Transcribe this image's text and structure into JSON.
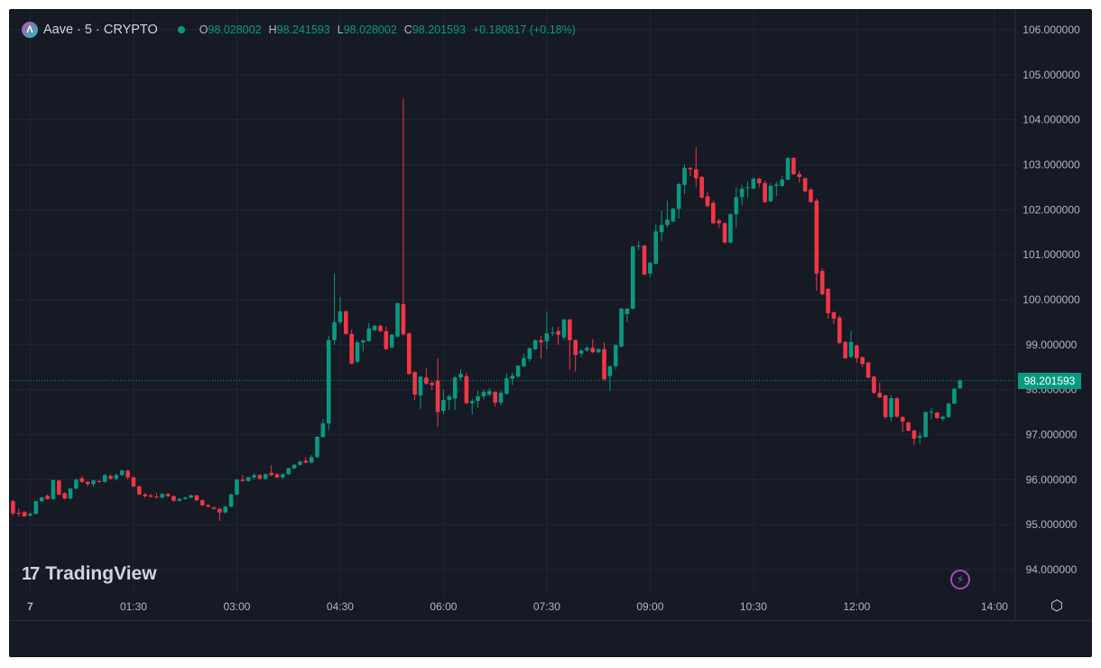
{
  "header": {
    "symbol": "Aave · 5 · CRYPTO",
    "ohlc": [
      {
        "label": "O",
        "value": "98.028002"
      },
      {
        "label": "H",
        "value": "98.241593"
      },
      {
        "label": "L",
        "value": "98.028002"
      },
      {
        "label": "C",
        "value": "98.201593"
      }
    ],
    "change": "+0.180817 (+0.18%)"
  },
  "branding": {
    "logo_text": "TradingView"
  },
  "icons": {
    "symbol_logo": "aave-logo-icon",
    "status": "market-status-dot-icon",
    "bolt": "lightning-icon",
    "settings": "settings-hexagon-icon"
  },
  "colors": {
    "background": "#161a25",
    "up": "#089981",
    "down": "#f23645",
    "grid": "#232632",
    "text": "#b2b5be"
  },
  "current_price_label": "98.201593",
  "chart_data": {
    "type": "candlestick",
    "interval_minutes": 5,
    "title": "",
    "ylim": [
      93.5,
      106.3
    ],
    "grid": true,
    "y_ticks": [
      "106.000000",
      "105.000000",
      "104.000000",
      "103.000000",
      "102.000000",
      "101.000000",
      "100.000000",
      "99.000000",
      "98.000000",
      "97.000000",
      "96.000000",
      "95.000000",
      "94.000000"
    ],
    "y_tick_values": [
      106,
      105,
      104,
      103,
      102,
      101,
      100,
      99,
      98,
      97,
      96,
      95,
      94
    ],
    "x_ticks": [
      "7",
      "01:30",
      "03:00",
      "04:30",
      "06:00",
      "07:30",
      "09:00",
      "10:30",
      "12:00",
      "14:00"
    ],
    "x_tick_minutes": [
      0,
      90,
      180,
      270,
      360,
      450,
      540,
      630,
      720,
      840
    ],
    "first_candle_time": "23:45",
    "last_candle_time": "13:30",
    "candles_ohlc": [
      [
        95.52,
        95.55,
        95.2,
        95.25
      ],
      [
        95.26,
        95.36,
        95.18,
        95.25
      ],
      [
        95.28,
        95.3,
        95.18,
        95.18
      ],
      [
        95.2,
        95.27,
        95.18,
        95.24
      ],
      [
        95.24,
        95.52,
        95.22,
        95.52
      ],
      [
        95.52,
        95.62,
        95.5,
        95.6
      ],
      [
        95.64,
        95.67,
        95.55,
        95.57
      ],
      [
        95.57,
        96.0,
        95.55,
        95.99
      ],
      [
        95.98,
        96.0,
        95.65,
        95.67
      ],
      [
        95.7,
        95.72,
        95.56,
        95.58
      ],
      [
        95.58,
        95.82,
        95.56,
        95.8
      ],
      [
        95.8,
        96.02,
        95.78,
        96.0
      ],
      [
        96.03,
        96.08,
        95.93,
        95.95
      ],
      [
        95.95,
        95.97,
        95.85,
        95.9
      ],
      [
        95.9,
        96.0,
        95.84,
        95.98
      ],
      [
        95.97,
        95.99,
        95.93,
        95.95
      ],
      [
        95.95,
        96.12,
        95.93,
        96.1
      ],
      [
        96.08,
        96.12,
        96.0,
        96.02
      ],
      [
        96.02,
        96.14,
        95.98,
        96.1
      ],
      [
        96.1,
        96.22,
        96.08,
        96.2
      ],
      [
        96.2,
        96.22,
        96.0,
        96.05
      ],
      [
        96.05,
        96.07,
        95.83,
        95.85
      ],
      [
        95.85,
        95.87,
        95.65,
        95.67
      ],
      [
        95.67,
        95.7,
        95.6,
        95.63
      ],
      [
        95.65,
        95.68,
        95.6,
        95.62
      ],
      [
        95.62,
        95.7,
        95.58,
        95.6
      ],
      [
        95.6,
        95.7,
        95.58,
        95.68
      ],
      [
        95.68,
        95.7,
        95.61,
        95.63
      ],
      [
        95.63,
        95.65,
        95.51,
        95.53
      ],
      [
        95.53,
        95.59,
        95.51,
        95.57
      ],
      [
        95.57,
        95.62,
        95.55,
        95.6
      ],
      [
        95.6,
        95.67,
        95.58,
        95.65
      ],
      [
        95.65,
        95.67,
        95.52,
        95.54
      ],
      [
        95.54,
        95.56,
        95.41,
        95.43
      ],
      [
        95.43,
        95.45,
        95.38,
        95.4
      ],
      [
        95.38,
        95.4,
        95.33,
        95.35
      ],
      [
        95.35,
        95.37,
        95.08,
        95.27
      ],
      [
        95.27,
        95.42,
        95.25,
        95.4
      ],
      [
        95.4,
        95.69,
        95.38,
        95.67
      ],
      [
        95.67,
        96.02,
        95.65,
        96.0
      ],
      [
        96.0,
        96.1,
        95.95,
        95.97
      ],
      [
        95.97,
        96.07,
        95.95,
        96.05
      ],
      [
        96.05,
        96.15,
        96.0,
        96.1
      ],
      [
        96.1,
        96.12,
        96.0,
        96.02
      ],
      [
        96.02,
        96.14,
        96.0,
        96.12
      ],
      [
        96.15,
        96.32,
        96.08,
        96.1
      ],
      [
        96.12,
        96.14,
        96.03,
        96.05
      ],
      [
        96.05,
        96.14,
        96.0,
        96.12
      ],
      [
        96.12,
        96.27,
        96.1,
        96.25
      ],
      [
        96.25,
        96.35,
        96.23,
        96.33
      ],
      [
        96.33,
        96.42,
        96.31,
        96.4
      ],
      [
        96.42,
        96.5,
        96.36,
        96.38
      ],
      [
        96.38,
        96.55,
        96.36,
        96.5
      ],
      [
        96.5,
        96.97,
        96.48,
        96.95
      ],
      [
        96.95,
        97.35,
        96.93,
        97.25
      ],
      [
        97.25,
        99.2,
        97.1,
        99.1
      ],
      [
        99.1,
        100.58,
        99.0,
        99.5
      ],
      [
        99.5,
        100.06,
        99.45,
        99.74
      ],
      [
        99.74,
        99.76,
        99.22,
        99.24
      ],
      [
        99.24,
        99.33,
        98.56,
        98.58
      ],
      [
        98.62,
        99.1,
        98.6,
        99.05
      ],
      [
        99.05,
        99.1,
        98.85,
        99.1
      ],
      [
        99.08,
        99.48,
        99.06,
        99.36
      ],
      [
        99.32,
        99.44,
        99.3,
        99.42
      ],
      [
        99.42,
        99.44,
        99.28,
        99.3
      ],
      [
        99.3,
        99.4,
        98.88,
        98.9
      ],
      [
        98.94,
        99.24,
        98.92,
        99.22
      ],
      [
        99.18,
        99.94,
        99.16,
        99.92
      ],
      [
        99.9,
        104.47,
        99.2,
        99.23
      ],
      [
        99.25,
        99.27,
        98.33,
        98.35
      ],
      [
        98.39,
        98.41,
        97.77,
        97.89
      ],
      [
        97.87,
        98.3,
        97.57,
        98.29
      ],
      [
        98.27,
        98.47,
        98.11,
        98.13
      ],
      [
        98.15,
        98.18,
        98.0,
        98.1
      ],
      [
        98.2,
        98.7,
        97.17,
        97.5
      ],
      [
        97.53,
        98.0,
        97.45,
        97.77
      ],
      [
        97.77,
        97.9,
        97.55,
        97.85
      ],
      [
        97.8,
        98.3,
        97.55,
        98.27
      ],
      [
        98.27,
        98.45,
        98.2,
        98.35
      ],
      [
        98.3,
        98.38,
        97.68,
        97.7
      ],
      [
        97.7,
        97.8,
        97.45,
        97.75
      ],
      [
        97.75,
        97.98,
        97.6,
        97.85
      ],
      [
        97.85,
        98.0,
        97.78,
        97.95
      ],
      [
        97.89,
        98.03,
        97.85,
        97.97
      ],
      [
        97.95,
        97.97,
        97.62,
        97.71
      ],
      [
        97.71,
        97.97,
        97.65,
        97.93
      ],
      [
        97.91,
        98.37,
        97.89,
        98.25
      ],
      [
        98.24,
        98.38,
        98.1,
        98.31
      ],
      [
        98.29,
        98.55,
        98.27,
        98.53
      ],
      [
        98.52,
        98.8,
        98.5,
        98.7
      ],
      [
        98.68,
        98.94,
        98.62,
        98.92
      ],
      [
        98.9,
        99.12,
        98.88,
        99.1
      ],
      [
        99.1,
        99.2,
        98.68,
        99.05
      ],
      [
        99.07,
        99.74,
        98.9,
        99.25
      ],
      [
        99.25,
        99.4,
        99.2,
        99.27
      ],
      [
        99.3,
        99.4,
        99.0,
        99.22
      ],
      [
        99.16,
        99.58,
        99.1,
        99.56
      ],
      [
        99.56,
        99.58,
        98.45,
        99.1
      ],
      [
        99.1,
        99.12,
        98.4,
        98.77
      ],
      [
        98.8,
        98.9,
        98.72,
        98.87
      ],
      [
        98.87,
        98.97,
        98.84,
        98.93
      ],
      [
        98.93,
        99.12,
        98.81,
        98.83
      ],
      [
        98.83,
        98.92,
        98.8,
        98.9
      ],
      [
        98.9,
        99.05,
        98.2,
        98.23
      ],
      [
        98.3,
        98.54,
        97.97,
        98.52
      ],
      [
        98.52,
        99.01,
        98.45,
        98.99
      ],
      [
        98.96,
        99.82,
        98.94,
        99.8
      ],
      [
        99.68,
        99.82,
        99.5,
        99.8
      ],
      [
        99.8,
        101.2,
        99.78,
        101.18
      ],
      [
        101.18,
        101.3,
        101.1,
        101.2
      ],
      [
        101.2,
        101.22,
        100.54,
        100.56
      ],
      [
        100.58,
        100.84,
        100.5,
        100.82
      ],
      [
        100.8,
        101.67,
        100.78,
        101.52
      ],
      [
        101.5,
        101.98,
        101.3,
        101.66
      ],
      [
        101.66,
        102.2,
        101.6,
        101.78
      ],
      [
        101.74,
        102.05,
        101.72,
        102.02
      ],
      [
        102.02,
        102.6,
        101.8,
        102.57
      ],
      [
        102.55,
        103.0,
        102.35,
        102.93
      ],
      [
        102.93,
        102.95,
        102.75,
        102.9
      ],
      [
        102.9,
        103.39,
        102.5,
        102.7
      ],
      [
        102.73,
        102.75,
        102.25,
        102.27
      ],
      [
        102.3,
        102.4,
        102.05,
        102.08
      ],
      [
        102.15,
        102.2,
        101.68,
        101.7
      ],
      [
        101.76,
        101.8,
        101.6,
        101.7
      ],
      [
        101.7,
        101.72,
        101.25,
        101.27
      ],
      [
        101.27,
        101.92,
        101.25,
        101.9
      ],
      [
        101.9,
        102.5,
        101.6,
        102.28
      ],
      [
        102.28,
        102.55,
        102.1,
        102.47
      ],
      [
        102.48,
        102.62,
        102.27,
        102.5
      ],
      [
        102.47,
        102.72,
        102.45,
        102.69
      ],
      [
        102.69,
        102.71,
        102.5,
        102.59
      ],
      [
        102.59,
        102.65,
        102.15,
        102.17
      ],
      [
        102.19,
        102.6,
        102.17,
        102.53
      ],
      [
        102.53,
        102.62,
        102.3,
        102.56
      ],
      [
        102.53,
        102.75,
        102.51,
        102.67
      ],
      [
        102.67,
        103.17,
        102.65,
        103.15
      ],
      [
        103.15,
        103.17,
        102.77,
        102.79
      ],
      [
        102.79,
        102.86,
        102.6,
        102.73
      ],
      [
        102.7,
        102.72,
        102.38,
        102.41
      ],
      [
        102.45,
        102.48,
        102.15,
        102.17
      ],
      [
        102.2,
        102.25,
        100.2,
        100.58
      ],
      [
        100.64,
        100.7,
        100.1,
        100.12
      ],
      [
        100.24,
        100.26,
        99.58,
        99.7
      ],
      [
        99.72,
        99.74,
        99.45,
        99.58
      ],
      [
        99.6,
        99.65,
        99.02,
        99.04
      ],
      [
        99.06,
        99.08,
        98.68,
        98.7
      ],
      [
        98.73,
        99.3,
        98.7,
        99.06
      ],
      [
        98.98,
        99.0,
        98.6,
        98.7
      ],
      [
        98.72,
        98.74,
        98.5,
        98.57
      ],
      [
        98.6,
        98.62,
        98.25,
        98.27
      ],
      [
        98.29,
        98.31,
        97.91,
        97.93
      ],
      [
        97.93,
        98.16,
        97.81,
        97.83
      ],
      [
        97.87,
        97.89,
        97.35,
        97.39
      ],
      [
        97.39,
        97.88,
        97.29,
        97.81
      ],
      [
        97.81,
        97.83,
        97.38,
        97.4
      ],
      [
        97.39,
        97.41,
        97.05,
        97.29
      ],
      [
        97.27,
        97.29,
        97.07,
        97.09
      ],
      [
        97.09,
        97.11,
        96.77,
        96.91
      ],
      [
        96.93,
        97.05,
        96.8,
        96.97
      ],
      [
        96.95,
        97.52,
        96.93,
        97.5
      ],
      [
        97.5,
        97.6,
        97.35,
        97.51
      ],
      [
        97.49,
        97.51,
        97.35,
        97.37
      ],
      [
        97.35,
        97.42,
        97.3,
        97.4
      ],
      [
        97.39,
        97.71,
        97.37,
        97.69
      ],
      [
        97.69,
        98.04,
        97.67,
        98.02
      ],
      [
        98.028002,
        98.241593,
        98.028002,
        98.201593
      ]
    ],
    "current_price": 98.201593
  }
}
